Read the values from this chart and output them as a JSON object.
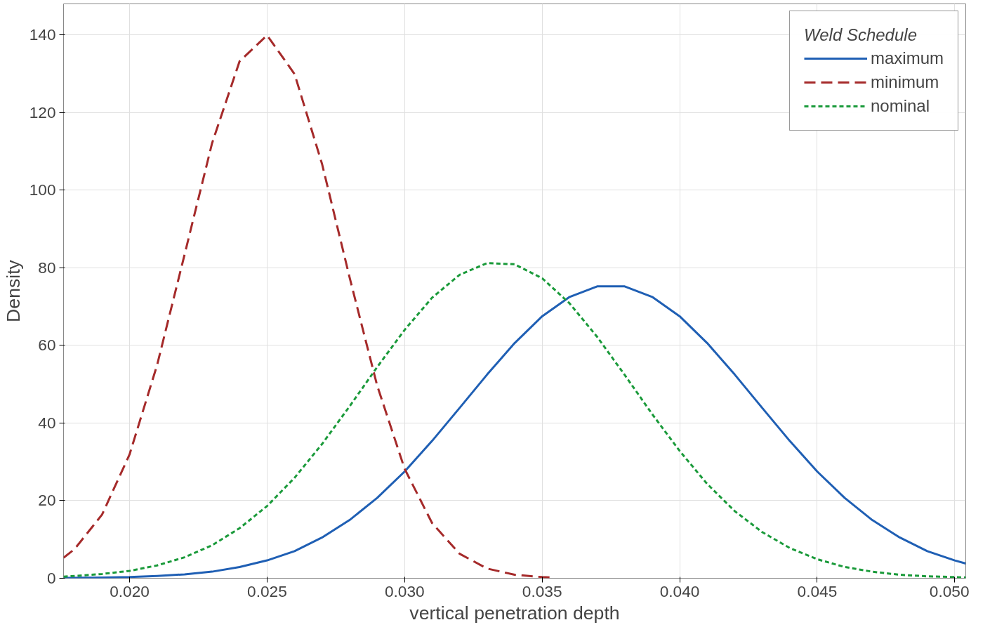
{
  "chart_data": {
    "type": "line",
    "xlabel": "vertical penetration depth",
    "ylabel": "Density",
    "legend_title": "Weld Schedule",
    "legend": "top right",
    "grid": true,
    "xlim": [
      0.0176,
      0.0504
    ],
    "ylim": [
      0,
      148
    ],
    "xticks": [
      {
        "value": 0.02,
        "label": "0.020"
      },
      {
        "value": 0.025,
        "label": "0.025"
      },
      {
        "value": 0.03,
        "label": "0.030"
      },
      {
        "value": 0.035,
        "label": "0.035"
      },
      {
        "value": 0.04,
        "label": "0.040"
      },
      {
        "value": 0.045,
        "label": "0.045"
      },
      {
        "value": 0.05,
        "label": "0.050"
      }
    ],
    "yticks": [
      0,
      20,
      40,
      60,
      80,
      100,
      120,
      140
    ],
    "series": [
      {
        "name": "maximum",
        "color": "#1f5fb4",
        "line_style": "solid",
        "x": [
          0.0176,
          0.019,
          0.02,
          0.021,
          0.022,
          0.023,
          0.024,
          0.025,
          0.026,
          0.027,
          0.028,
          0.029,
          0.03,
          0.031,
          0.032,
          0.033,
          0.034,
          0.035,
          0.036,
          0.037,
          0.038,
          0.039,
          0.04,
          0.041,
          0.042,
          0.043,
          0.044,
          0.045,
          0.046,
          0.047,
          0.048,
          0.049,
          0.05,
          0.0504
        ],
        "values": [
          0.1,
          0.2,
          0.3,
          0.6,
          1.0,
          1.7,
          2.9,
          4.6,
          7.0,
          10.5,
          15.0,
          20.7,
          27.5,
          35.4,
          43.9,
          52.5,
          60.6,
          67.5,
          72.5,
          75.2,
          75.2,
          72.5,
          67.5,
          60.6,
          52.5,
          43.9,
          35.4,
          27.5,
          20.7,
          15.0,
          10.5,
          7.0,
          4.6,
          3.8
        ]
      },
      {
        "name": "minimum",
        "color": "#a52a2a",
        "line_style": "dashed",
        "x": [
          0.0176,
          0.018,
          0.019,
          0.02,
          0.021,
          0.022,
          0.023,
          0.024,
          0.025,
          0.026,
          0.027,
          0.028,
          0.029,
          0.03,
          0.031,
          0.032,
          0.033,
          0.034,
          0.035,
          0.0354
        ],
        "values": [
          5.3,
          7.5,
          16.4,
          31.9,
          54.9,
          83.4,
          112.1,
          133.2,
          139.9,
          129.9,
          106.7,
          77.5,
          49.7,
          28.2,
          14.2,
          6.3,
          2.5,
          0.9,
          0.3,
          0.2
        ]
      },
      {
        "name": "nominal",
        "color": "#1a9a3a",
        "line_style": "dotted",
        "x": [
          0.0176,
          0.019,
          0.02,
          0.021,
          0.022,
          0.023,
          0.024,
          0.025,
          0.026,
          0.027,
          0.028,
          0.029,
          0.03,
          0.031,
          0.032,
          0.033,
          0.034,
          0.035,
          0.036,
          0.037,
          0.038,
          0.039,
          0.04,
          0.041,
          0.042,
          0.043,
          0.044,
          0.045,
          0.046,
          0.047,
          0.048,
          0.049,
          0.05,
          0.0504
        ],
        "values": [
          0.4,
          1.1,
          1.9,
          3.3,
          5.4,
          8.5,
          12.9,
          18.6,
          25.9,
          34.6,
          44.3,
          54.4,
          64.0,
          72.3,
          78.2,
          81.2,
          80.9,
          77.3,
          70.8,
          62.2,
          52.4,
          42.3,
          32.8,
          24.3,
          17.3,
          11.9,
          7.8,
          4.9,
          2.9,
          1.7,
          0.9,
          0.5,
          0.3,
          0.2
        ]
      }
    ]
  }
}
